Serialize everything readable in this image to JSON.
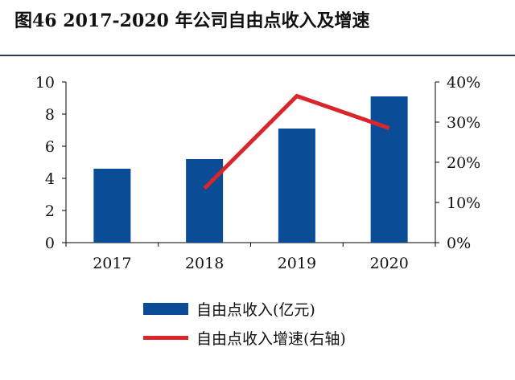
{
  "title": "图46  2017-2020 年公司自由点收入及增速",
  "chart_data": {
    "type": "bar",
    "categories": [
      "2017",
      "2018",
      "2019",
      "2020"
    ],
    "series": [
      {
        "name": "自由点收入(亿元)",
        "type": "bar",
        "axis": "left",
        "values": [
          4.6,
          5.2,
          7.1,
          9.1
        ],
        "color": "#0b4c96"
      },
      {
        "name": "自由点收入增速(右轴)",
        "type": "line",
        "axis": "right",
        "values": [
          null,
          13.5,
          36.5,
          28.5
        ],
        "color": "#d9262b"
      }
    ],
    "y_left": {
      "min": 0,
      "max": 10,
      "ticks": [
        "0",
        "2",
        "4",
        "6",
        "8",
        "10"
      ]
    },
    "y_right": {
      "min": 0,
      "max": 40,
      "ticks": [
        "0%",
        "10%",
        "20%",
        "30%",
        "40%"
      ]
    },
    "grid": false,
    "legend_position": "bottom"
  }
}
